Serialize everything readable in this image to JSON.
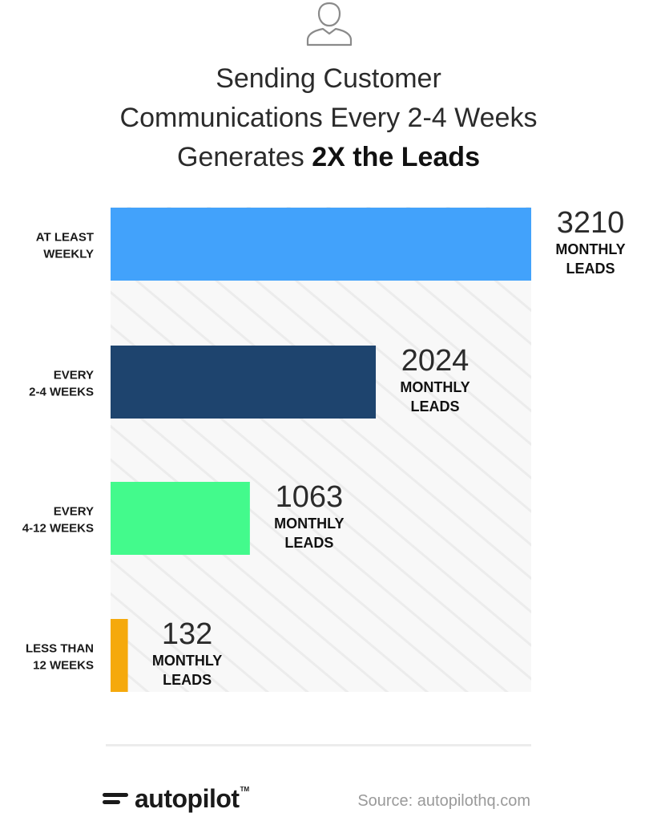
{
  "header": {
    "icon": "user-icon",
    "title_line1": "Sending Customer",
    "title_line2": "Communications Every 2-4 Weeks",
    "title_line3_prefix": "Generates ",
    "title_line3_emphasis": "2X the Leads"
  },
  "chart_data": {
    "type": "bar",
    "orientation": "horizontal",
    "title": "Sending Customer Communications Every 2-4 Weeks Generates 2X the Leads",
    "xlabel": "",
    "ylabel": "",
    "xlim": [
      0,
      3210
    ],
    "grid": false,
    "categories": [
      [
        "AT LEAST",
        "WEEKLY"
      ],
      [
        "EVERY",
        "2-4 WEEKS"
      ],
      [
        "EVERY",
        "4-12 WEEKS"
      ],
      [
        "LESS THAN",
        "12 WEEKS"
      ]
    ],
    "values": [
      3210,
      2024,
      1063,
      132
    ],
    "value_unit_lines": [
      "MONTHLY",
      "LEADS"
    ],
    "colors": [
      "#42a2fb",
      "#1e446e",
      "#43fa8c",
      "#f5a90c"
    ],
    "background_pattern_color": "#f2f2f2"
  },
  "footer": {
    "logo_icon": "autopilot-logo-icon",
    "logo_text": "autopilot",
    "logo_tm": "TM",
    "source": "Source:  autopilothq.com"
  }
}
